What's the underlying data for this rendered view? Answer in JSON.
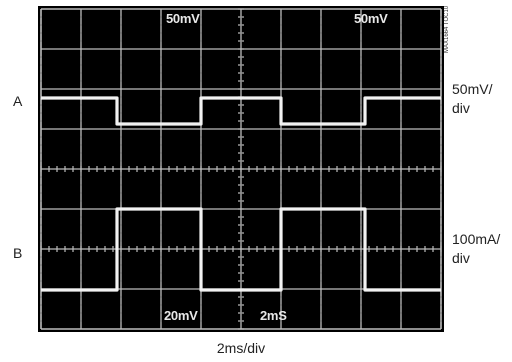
{
  "chart_data": {
    "type": "line",
    "title": "",
    "xlabel": "2ms/div",
    "xlim": [
      0,
      10
    ],
    "grid": true,
    "figure_code": "MAX1664 TOC10",
    "scope_readouts": {
      "ch_a_scale": "50mV",
      "ch_a_scale_right": "50mV",
      "ch_b_scale": "20mV",
      "timebase": "2mS"
    },
    "series": [
      {
        "name": "A",
        "scale": "50mV/\ndiv",
        "color": "#f2f2f2",
        "x": [
          0,
          1.9,
          1.9,
          4.0,
          4.0,
          6.0,
          6.0,
          8.1,
          8.1,
          10
        ],
        "levels": [
          1,
          1,
          0,
          0,
          1,
          1,
          0,
          0,
          1,
          1
        ]
      },
      {
        "name": "B",
        "scale": "100mA/\ndiv",
        "color": "#f2f2f2",
        "x": [
          0,
          1.9,
          1.9,
          4.0,
          4.0,
          6.0,
          6.0,
          8.1,
          8.1,
          10
        ],
        "levels": [
          0,
          0,
          1,
          1,
          0,
          0,
          1,
          1,
          0,
          0
        ]
      }
    ]
  }
}
